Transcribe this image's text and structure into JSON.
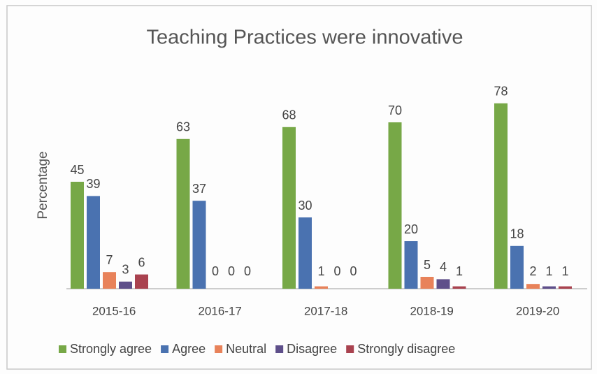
{
  "chart_data": {
    "type": "bar",
    "title": "Teaching Practices were innovative",
    "y_label": "Percentage",
    "categories": [
      "2015-16",
      "2016-17",
      "2017-18",
      "2018-19",
      "2019-20"
    ],
    "series": [
      {
        "name": "Strongly agree",
        "color": "#77a847",
        "values": [
          45,
          63,
          68,
          70,
          78
        ]
      },
      {
        "name": "Agree",
        "color": "#4a72b0",
        "values": [
          39,
          37,
          30,
          20,
          18
        ]
      },
      {
        "name": "Neutral",
        "color": "#e8825a",
        "values": [
          7,
          0,
          1,
          5,
          2
        ]
      },
      {
        "name": "Disagree",
        "color": "#5e4f8a",
        "values": [
          3,
          0,
          0,
          4,
          1
        ]
      },
      {
        "name": "Strongly disagree",
        "color": "#a9424f",
        "values": [
          6,
          0,
          0,
          1,
          1
        ]
      }
    ],
    "ylim": [
      0,
      90
    ],
    "legend": "bottom"
  }
}
